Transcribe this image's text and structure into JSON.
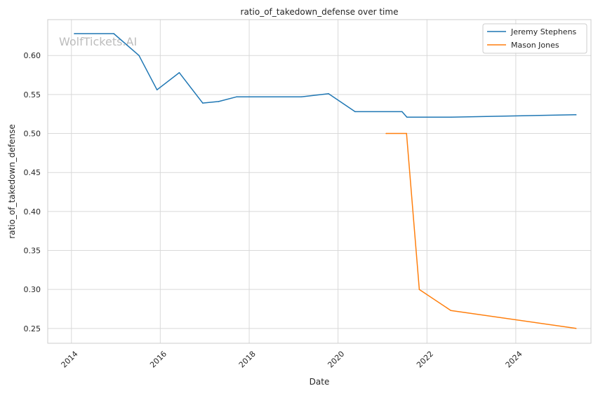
{
  "chart_data": {
    "type": "line",
    "title": "ratio_of_takedown_defense over time",
    "xlabel": "Date",
    "ylabel": "ratio_of_takedown_defense",
    "watermark": "WolfTickets.AI",
    "xlim": [
      "2013-06-20",
      "2025-09-10"
    ],
    "ylim": [
      0.231,
      0.646
    ],
    "xticks": [
      "2014",
      "2016",
      "2018",
      "2020",
      "2022",
      "2024"
    ],
    "yticks": [
      "0.25",
      "0.30",
      "0.35",
      "0.40",
      "0.45",
      "0.50",
      "0.55",
      "0.60"
    ],
    "grid": true,
    "legend_position": "top-right",
    "series": [
      {
        "name": "Jeremy Stephens",
        "color": "#1f77b4",
        "points": [
          {
            "x": "2014-01-25",
            "y": 0.628
          },
          {
            "x": "2014-12-15",
            "y": 0.628
          },
          {
            "x": "2015-07-10",
            "y": 0.6
          },
          {
            "x": "2015-12-05",
            "y": 0.556
          },
          {
            "x": "2016-06-05",
            "y": 0.578
          },
          {
            "x": "2016-12-15",
            "y": 0.539
          },
          {
            "x": "2017-04-25",
            "y": 0.541
          },
          {
            "x": "2017-09-20",
            "y": 0.547
          },
          {
            "x": "2019-03-05",
            "y": 0.547
          },
          {
            "x": "2019-10-15",
            "y": 0.551
          },
          {
            "x": "2020-05-20",
            "y": 0.528
          },
          {
            "x": "2021-06-10",
            "y": 0.528
          },
          {
            "x": "2021-07-20",
            "y": 0.521
          },
          {
            "x": "2022-07-20",
            "y": 0.521
          },
          {
            "x": "2025-05-10",
            "y": 0.524
          }
        ]
      },
      {
        "name": "Mason Jones",
        "color": "#ff7f0e",
        "points": [
          {
            "x": "2021-01-30",
            "y": 0.5
          },
          {
            "x": "2021-07-17",
            "y": 0.5
          },
          {
            "x": "2021-10-30",
            "y": 0.3
          },
          {
            "x": "2022-07-16",
            "y": 0.273
          },
          {
            "x": "2025-05-10",
            "y": 0.25
          }
        ]
      }
    ]
  }
}
